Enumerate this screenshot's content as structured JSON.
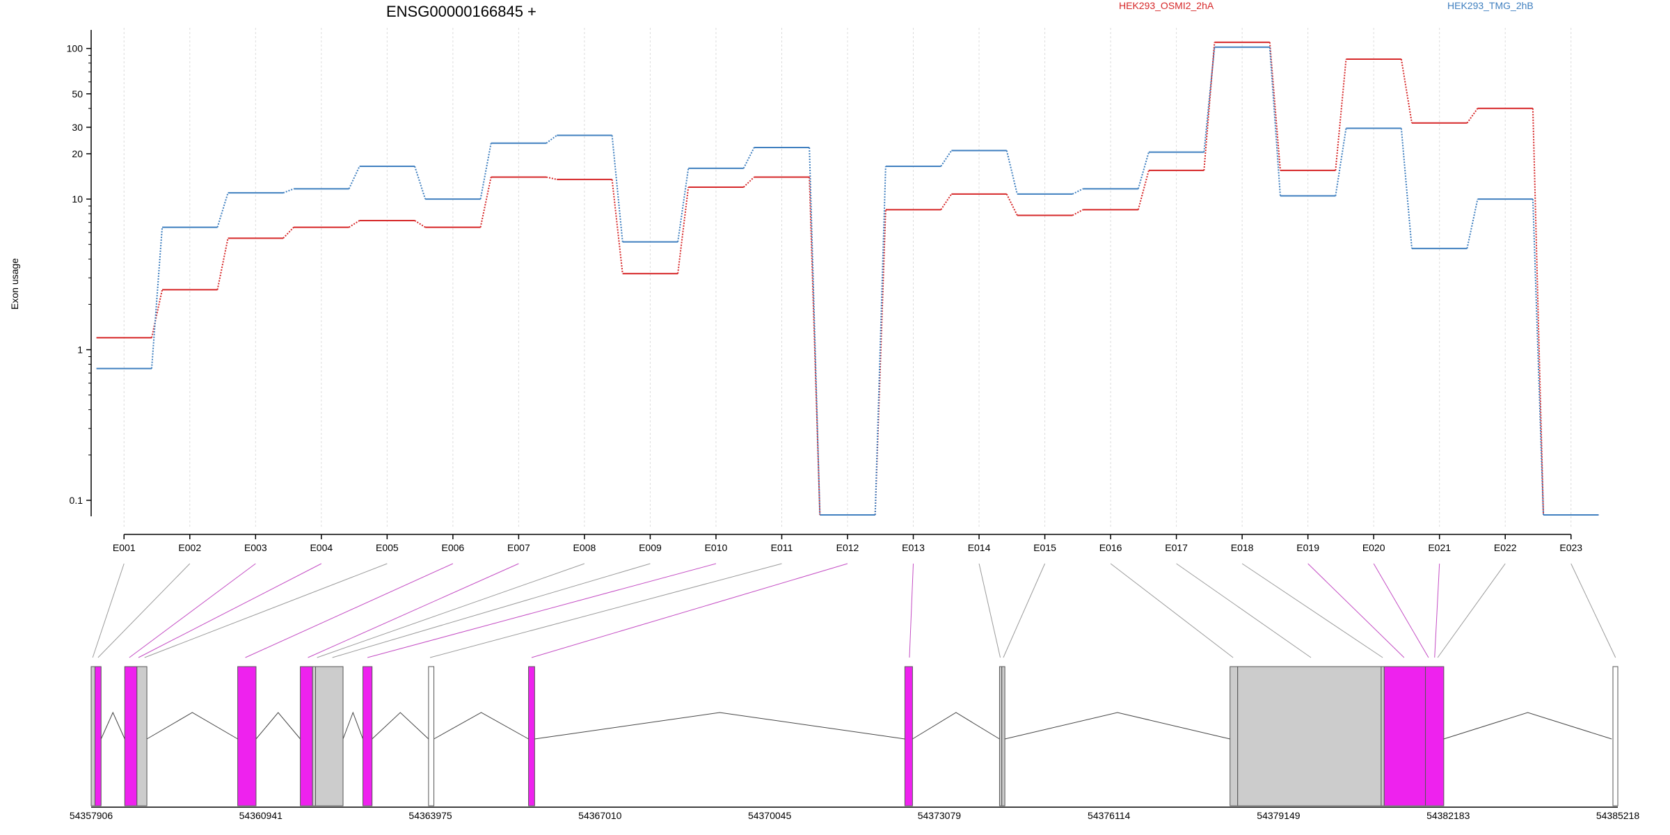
{
  "chart_data": {
    "type": "line",
    "title": "ENSG00000166845 +",
    "ylabel": "Exon usage",
    "xlabel": "",
    "y_scale": "log",
    "ylim": [
      0.08,
      130
    ],
    "y_ticks": [
      {
        "value": 0.1,
        "label": "0.1"
      },
      {
        "value": 1,
        "label": "1"
      },
      {
        "value": 10,
        "label": "10"
      },
      {
        "value": 20,
        "label": "20"
      },
      {
        "value": 30,
        "label": "30"
      },
      {
        "value": 50,
        "label": "50"
      },
      {
        "value": 100,
        "label": "100"
      }
    ],
    "grid": true,
    "legend_position": "top",
    "categories": [
      "E001",
      "E002",
      "E003",
      "E004",
      "E005",
      "E006",
      "E007",
      "E008",
      "E009",
      "E010",
      "E011",
      "E012",
      "E013",
      "E014",
      "E015",
      "E016",
      "E017",
      "E018",
      "E019",
      "E020",
      "E021",
      "E022",
      "E023"
    ],
    "series": [
      {
        "name": "HEK293_OSMI2_2hA",
        "color": "#d62728",
        "values": [
          1.2,
          2.5,
          5.5,
          6.5,
          7.2,
          6.5,
          14,
          13.5,
          3.2,
          12,
          14,
          0.08,
          8.5,
          10.8,
          7.8,
          8.5,
          15.5,
          110,
          15.5,
          85,
          32,
          40,
          0.08
        ]
      },
      {
        "name": "HEK293_TMG_2hB",
        "color": "#3f7fbf",
        "values": [
          0.75,
          6.5,
          11,
          11.7,
          16.5,
          10,
          23.5,
          26.5,
          5.2,
          16,
          22,
          0.08,
          16.5,
          21,
          10.8,
          11.7,
          20.5,
          102,
          10.5,
          29.5,
          4.7,
          10,
          0.08
        ]
      }
    ],
    "gene_model": {
      "genomic_ticks": [
        "54357906",
        "54360941",
        "54363975",
        "54367010",
        "54370045",
        "54373079",
        "54376114",
        "54379149",
        "54382183",
        "54385218"
      ],
      "exon_colors": {
        "significant": "#ee22ee",
        "normal": "#cccccc",
        "empty": "#ffffff"
      }
    }
  }
}
